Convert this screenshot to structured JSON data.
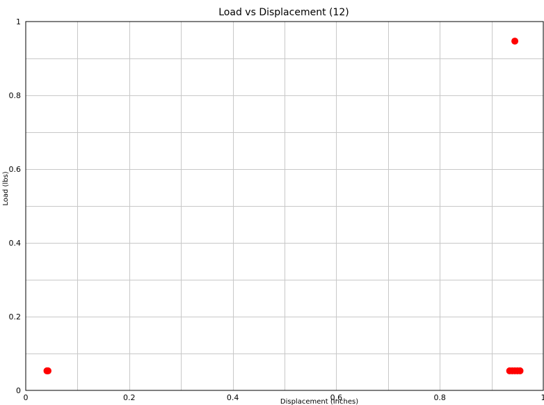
{
  "chart_data": {
    "type": "scatter",
    "title": "Load vs Displacement (12)",
    "xlabel": "Displacement (Inches)",
    "ylabel": "Load (lbs)",
    "xlim": [
      0,
      1
    ],
    "ylim": [
      0,
      1
    ],
    "x_ticks": [
      "0",
      "0.2",
      "0.4",
      "0.6",
      "0.8",
      "1"
    ],
    "y_ticks": [
      "0",
      "0.2",
      "0.4",
      "0.6",
      "0.8",
      "1"
    ],
    "grid": true,
    "legend": "none",
    "series": [
      {
        "color": "#ff0000",
        "points": [
          {
            "x": 0.041,
            "y": 0.053
          },
          {
            "x": 0.043,
            "y": 0.053
          },
          {
            "x": 0.945,
            "y": 0.947
          },
          {
            "x": 0.935,
            "y": 0.053
          },
          {
            "x": 0.94,
            "y": 0.053
          },
          {
            "x": 0.945,
            "y": 0.053
          },
          {
            "x": 0.95,
            "y": 0.053
          },
          {
            "x": 0.955,
            "y": 0.053
          }
        ]
      }
    ]
  }
}
